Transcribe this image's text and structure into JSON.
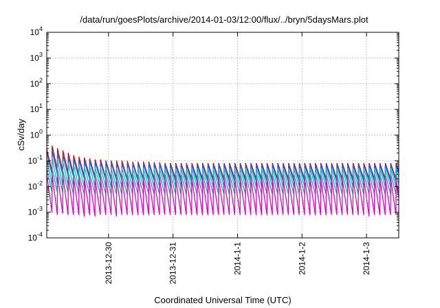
{
  "chart_data": {
    "type": "line",
    "title": "/data/run/goesPlots/archive/2014-01-03/12:00/flux/../bryn/5daysMars.plot",
    "xlabel": "Coordinated Universal Time (UTC)",
    "ylabel": "cSv/day",
    "yscale": "log",
    "ylim": [
      0.0001,
      10000
    ],
    "y_ticks": [
      {
        "base": "10",
        "exp": "-4",
        "value": 0.0001
      },
      {
        "base": "10",
        "exp": "-3",
        "value": 0.001
      },
      {
        "base": "10",
        "exp": "-2",
        "value": 0.01
      },
      {
        "base": "10",
        "exp": "-1",
        "value": 0.1
      },
      {
        "base": "10",
        "exp": "0",
        "value": 1
      },
      {
        "base": "10",
        "exp": "1",
        "value": 10
      },
      {
        "base": "10",
        "exp": "2",
        "value": 100
      },
      {
        "base": "10",
        "exp": "3",
        "value": 1000
      },
      {
        "base": "10",
        "exp": "4",
        "value": 10000
      }
    ],
    "xlim": [
      "2013-12-29 01:00",
      "2014-01-03 12:00"
    ],
    "x_ticks": [
      "2013-12-30",
      "2013-12-31",
      "2014-1-1",
      "2014-1-2",
      "2014-1-3"
    ],
    "grid": true,
    "sawtooth_period_hours": 2,
    "series": [
      {
        "color": "#dd0000",
        "values": [
          0.28,
          0.38,
          0.3,
          0.25,
          0.2,
          0.16,
          0.14,
          0.13,
          0.12,
          0.11,
          0.11,
          0.1,
          0.1,
          0.1,
          0.1,
          0.095,
          0.09,
          0.09,
          0.09,
          0.09,
          0.085,
          0.085,
          0.08,
          0.08,
          0.08,
          0.08,
          0.08,
          0.08,
          0.08,
          0.08,
          0.08,
          0.08,
          0.08,
          0.08,
          0.08,
          0.08,
          0.08,
          0.08,
          0.08,
          0.08,
          0.08,
          0.08,
          0.08,
          0.08,
          0.08,
          0.08,
          0.08,
          0.08,
          0.08,
          0.08,
          0.08,
          0.08,
          0.08,
          0.08,
          0.08,
          0.08,
          0.08,
          0.08,
          0.08,
          0.08,
          0.08,
          0.08,
          0.08,
          0.08,
          0.08,
          0.08,
          0.08,
          0.08
        ],
        "troughs": [
          0.04,
          0.045,
          0.04,
          0.035,
          0.03,
          0.028,
          0.025,
          0.025,
          0.024,
          0.022,
          0.022,
          0.021,
          0.021,
          0.02,
          0.02,
          0.02,
          0.02,
          0.02,
          0.02,
          0.02,
          0.02,
          0.02,
          0.02,
          0.02,
          0.02,
          0.02,
          0.02,
          0.02,
          0.02,
          0.02,
          0.02,
          0.02,
          0.02,
          0.02,
          0.02,
          0.02,
          0.02,
          0.02,
          0.02,
          0.02,
          0.02,
          0.02,
          0.02,
          0.02,
          0.02,
          0.02,
          0.02,
          0.02,
          0.02,
          0.02,
          0.02,
          0.02,
          0.02,
          0.02,
          0.02,
          0.02,
          0.02,
          0.02,
          0.02,
          0.02,
          0.02,
          0.02,
          0.02,
          0.02,
          0.02,
          0.02,
          0.02,
          0.02
        ]
      },
      {
        "color": "#1060e0",
        "values": [
          0.2,
          0.25,
          0.2,
          0.17,
          0.14,
          0.12,
          0.11,
          0.1,
          0.1,
          0.09,
          0.09,
          0.085,
          0.085,
          0.08,
          0.08,
          0.08,
          0.08,
          0.08,
          0.075,
          0.075,
          0.075,
          0.075,
          0.07,
          0.07,
          0.07,
          0.07,
          0.07,
          0.07,
          0.07,
          0.07,
          0.07,
          0.07,
          0.07,
          0.07,
          0.07,
          0.07,
          0.07,
          0.07,
          0.07,
          0.07,
          0.07,
          0.07,
          0.07,
          0.07,
          0.07,
          0.07,
          0.07,
          0.07,
          0.07,
          0.07,
          0.07,
          0.07,
          0.07,
          0.07,
          0.07,
          0.07,
          0.07,
          0.07,
          0.07,
          0.07,
          0.07,
          0.07,
          0.07,
          0.07,
          0.07,
          0.07,
          0.07,
          0.07
        ],
        "troughs": [
          0.03,
          0.03,
          0.028,
          0.026,
          0.024,
          0.022,
          0.02,
          0.02,
          0.02,
          0.019,
          0.019,
          0.018,
          0.018,
          0.018,
          0.018,
          0.017,
          0.017,
          0.017,
          0.017,
          0.017,
          0.017,
          0.017,
          0.016,
          0.016,
          0.016,
          0.016,
          0.016,
          0.016,
          0.016,
          0.016,
          0.016,
          0.016,
          0.016,
          0.016,
          0.016,
          0.016,
          0.016,
          0.016,
          0.016,
          0.016,
          0.016,
          0.016,
          0.016,
          0.016,
          0.016,
          0.016,
          0.016,
          0.016,
          0.016,
          0.016,
          0.016,
          0.016,
          0.016,
          0.016,
          0.016,
          0.016,
          0.016,
          0.016,
          0.016,
          0.016,
          0.016,
          0.016,
          0.016,
          0.016,
          0.016,
          0.016,
          0.016,
          0.016
        ]
      },
      {
        "color": "#00b8e8",
        "values": [
          0.12,
          0.13,
          0.11,
          0.09,
          0.08,
          0.07,
          0.065,
          0.06,
          0.06,
          0.055,
          0.055,
          0.05,
          0.05,
          0.05,
          0.05,
          0.05,
          0.05,
          0.05,
          0.05,
          0.05,
          0.05,
          0.05,
          0.05,
          0.05,
          0.05,
          0.05,
          0.05,
          0.05,
          0.05,
          0.05,
          0.05,
          0.05,
          0.05,
          0.05,
          0.05,
          0.05,
          0.05,
          0.05,
          0.05,
          0.05,
          0.05,
          0.05,
          0.05,
          0.05,
          0.05,
          0.05,
          0.05,
          0.05,
          0.05,
          0.05,
          0.05,
          0.05,
          0.05,
          0.05,
          0.05,
          0.05,
          0.05,
          0.05,
          0.05,
          0.05,
          0.05,
          0.05,
          0.05,
          0.05,
          0.05,
          0.05,
          0.05,
          0.05
        ],
        "troughs": [
          0.012,
          0.012,
          0.011,
          0.011,
          0.01,
          0.01,
          0.01,
          0.01,
          0.01,
          0.01,
          0.01,
          0.01,
          0.01,
          0.01,
          0.01,
          0.01,
          0.01,
          0.01,
          0.01,
          0.01,
          0.01,
          0.01,
          0.01,
          0.01,
          0.01,
          0.01,
          0.01,
          0.01,
          0.01,
          0.01,
          0.01,
          0.01,
          0.01,
          0.01,
          0.01,
          0.01,
          0.01,
          0.01,
          0.01,
          0.01,
          0.01,
          0.01,
          0.01,
          0.01,
          0.01,
          0.01,
          0.01,
          0.01,
          0.01,
          0.01,
          0.01,
          0.01,
          0.01,
          0.01,
          0.01,
          0.01,
          0.01,
          0.01,
          0.01,
          0.01,
          0.01,
          0.01,
          0.01,
          0.01,
          0.01,
          0.01,
          0.01,
          0.01
        ]
      },
      {
        "color": "#20a090",
        "values": [
          0.05,
          0.05,
          0.045,
          0.04,
          0.035,
          0.035,
          0.03,
          0.03,
          0.03,
          0.03,
          0.03,
          0.03,
          0.03,
          0.03,
          0.03,
          0.03,
          0.03,
          0.03,
          0.03,
          0.03,
          0.03,
          0.03,
          0.03,
          0.03,
          0.03,
          0.03,
          0.03,
          0.03,
          0.03,
          0.03,
          0.03,
          0.03,
          0.03,
          0.03,
          0.03,
          0.03,
          0.03,
          0.03,
          0.03,
          0.03,
          0.03,
          0.03,
          0.03,
          0.03,
          0.03,
          0.03,
          0.03,
          0.03,
          0.03,
          0.03,
          0.03,
          0.03,
          0.03,
          0.03,
          0.03,
          0.03,
          0.03,
          0.03,
          0.03,
          0.03,
          0.03,
          0.03,
          0.03,
          0.03,
          0.03,
          0.03,
          0.03,
          0.03
        ],
        "troughs": [
          0.006,
          0.006,
          0.006,
          0.006,
          0.005,
          0.005,
          0.005,
          0.005,
          0.005,
          0.005,
          0.005,
          0.005,
          0.005,
          0.005,
          0.005,
          0.005,
          0.005,
          0.005,
          0.005,
          0.005,
          0.005,
          0.005,
          0.005,
          0.005,
          0.005,
          0.005,
          0.005,
          0.005,
          0.005,
          0.005,
          0.005,
          0.005,
          0.005,
          0.005,
          0.005,
          0.005,
          0.005,
          0.005,
          0.005,
          0.005,
          0.005,
          0.005,
          0.005,
          0.005,
          0.005,
          0.005,
          0.005,
          0.005,
          0.005,
          0.005,
          0.005,
          0.005,
          0.005,
          0.005,
          0.005,
          0.005,
          0.005,
          0.005,
          0.005,
          0.005,
          0.005,
          0.005,
          0.005,
          0.005,
          0.005,
          0.005,
          0.005,
          0.005
        ]
      },
      {
        "color": "#e000c8",
        "values": [
          0.03,
          0.03,
          0.028,
          0.026,
          0.024,
          0.022,
          0.022,
          0.02,
          0.02,
          0.02,
          0.02,
          0.02,
          0.02,
          0.02,
          0.02,
          0.02,
          0.02,
          0.02,
          0.02,
          0.02,
          0.02,
          0.02,
          0.02,
          0.02,
          0.02,
          0.02,
          0.02,
          0.02,
          0.02,
          0.02,
          0.02,
          0.02,
          0.02,
          0.02,
          0.02,
          0.02,
          0.02,
          0.02,
          0.02,
          0.02,
          0.02,
          0.02,
          0.02,
          0.02,
          0.02,
          0.02,
          0.02,
          0.02,
          0.02,
          0.02,
          0.02,
          0.02,
          0.02,
          0.02,
          0.02,
          0.02,
          0.02,
          0.02,
          0.02,
          0.02,
          0.02,
          0.02,
          0.02,
          0.02,
          0.02,
          0.02,
          0.02,
          0.02
        ],
        "troughs": [
          0.001,
          0.0008,
          0.0009,
          0.0008,
          0.0008,
          0.0008,
          0.0007,
          0.0008,
          0.0007,
          0.0008,
          0.0008,
          0.0008,
          0.0007,
          0.0008,
          0.0008,
          0.0008,
          0.0008,
          0.0008,
          0.0008,
          0.0008,
          0.0008,
          0.0008,
          0.0008,
          0.0008,
          0.0008,
          0.0008,
          0.0008,
          0.0008,
          0.0008,
          0.0008,
          0.0008,
          0.0008,
          0.0008,
          0.0008,
          0.0008,
          0.0008,
          0.0008,
          0.0008,
          0.0008,
          0.0008,
          0.0008,
          0.0008,
          0.0008,
          0.0008,
          0.0008,
          0.0008,
          0.0008,
          0.0008,
          0.0008,
          0.0008,
          0.0008,
          0.0008,
          0.0008,
          0.0008,
          0.0008,
          0.0008,
          0.0008,
          0.0008,
          0.0008,
          0.0007,
          0.0008,
          0.0008,
          0.0008,
          0.0008,
          0.0008,
          0.0008,
          0.0008,
          0.0008
        ]
      }
    ]
  }
}
